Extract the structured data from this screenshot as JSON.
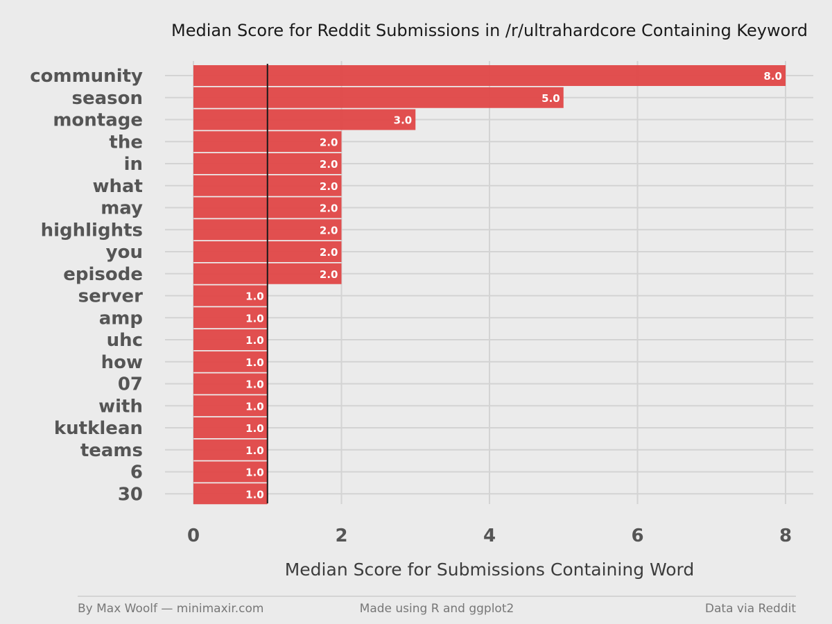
{
  "chart_data": {
    "type": "bar",
    "orientation": "horizontal",
    "title": "Median Score for Reddit Submissions in /r/ultrahardcore Containing Keyword",
    "xlabel": "Median Score for Submissions Containing Word",
    "ylabel": "",
    "categories": [
      "community",
      "season",
      "montage",
      "the",
      "in",
      "what",
      "may",
      "highlights",
      "you",
      "episode",
      "server",
      "amp",
      "uhc",
      "how",
      "07",
      "with",
      "kutklean",
      "teams",
      "6",
      "30"
    ],
    "values": [
      8.0,
      5.0,
      3.0,
      2.0,
      2.0,
      2.0,
      2.0,
      2.0,
      2.0,
      2.0,
      1.0,
      1.0,
      1.0,
      1.0,
      1.0,
      1.0,
      1.0,
      1.0,
      1.0,
      1.0
    ],
    "value_labels": [
      "8.0",
      "5.0",
      "3.0",
      "2.0",
      "2.0",
      "2.0",
      "2.0",
      "2.0",
      "2.0",
      "2.0",
      "1.0",
      "1.0",
      "1.0",
      "1.0",
      "1.0",
      "1.0",
      "1.0",
      "1.0",
      "1.0",
      "1.0"
    ],
    "xlim": [
      0,
      8
    ],
    "x_ticks": [
      "0",
      "2",
      "4",
      "6",
      "8"
    ],
    "reference_line_x": 1,
    "grid": true,
    "bar_color": "#e04747",
    "value_label_color_inside": "#ffffff",
    "value_label_color_outside": "#d6333a"
  },
  "footer": {
    "left": "By Max Woolf — minimaxir.com",
    "center": "Made using R and ggplot2",
    "right": "Data via Reddit"
  }
}
